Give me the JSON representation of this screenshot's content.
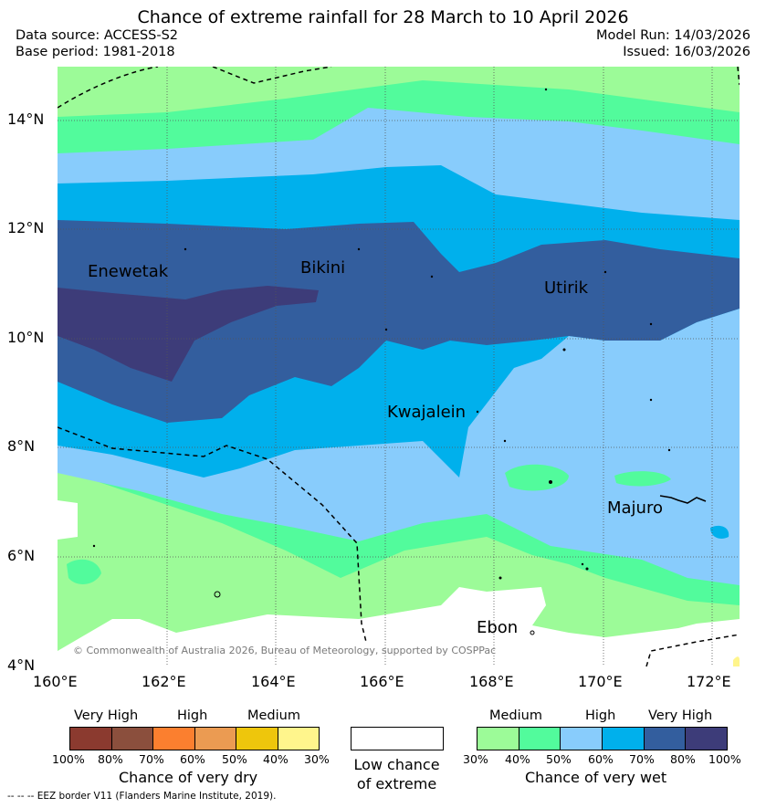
{
  "title": "Chance of extreme rainfall for 28 March to 10 April 2026",
  "data_source": "Data source: ACCESS-S2",
  "base_period": "Base period: 1981-2018",
  "model_run": "Model Run: 14/03/2026",
  "issued": "Issued: 16/03/2026",
  "lat_labels": [
    "14°N",
    "12°N",
    "10°N",
    "8°N",
    "6°N",
    "4°N"
  ],
  "lon_labels": [
    "160°E",
    "162°E",
    "164°E",
    "166°E",
    "168°E",
    "170°E",
    "172°E"
  ],
  "places": {
    "enewetak": "Enewetak",
    "bikini": "Bikini",
    "utirik": "Utirik",
    "kwajalein": "Kwajalein",
    "majuro": "Majuro",
    "ebon": "Ebon"
  },
  "copyright": "© Commonwealth of Australia 2026, Bureau of Meteorology, supported by COSPPac",
  "dry_legend": {
    "categories": [
      "Very High",
      "High",
      "Medium"
    ],
    "colors": [
      "#8b3a2f",
      "#8b4f3d",
      "#fb7f2f",
      "#eb9b52",
      "#eec60c",
      "#fff58c"
    ],
    "ticks": [
      "100%",
      "80%",
      "70%",
      "60%",
      "50%",
      "40%",
      "30%"
    ],
    "title": "Chance of very dry"
  },
  "low_legend": {
    "line1": "Low chance",
    "line2": "of extreme"
  },
  "wet_legend": {
    "categories": [
      "Medium",
      "High",
      "Very High"
    ],
    "colors": [
      "#9cfb98",
      "#52fb9c",
      "#88ccfc",
      "#00b0ec",
      "#335e9e",
      "#3d3c79"
    ],
    "ticks": [
      "30%",
      "40%",
      "50%",
      "60%",
      "70%",
      "80%",
      "100%"
    ],
    "title": "Chance of very wet"
  },
  "footer": "--  --  -- EEZ border V11 (Flanders Marine Institute, 2019)."
}
